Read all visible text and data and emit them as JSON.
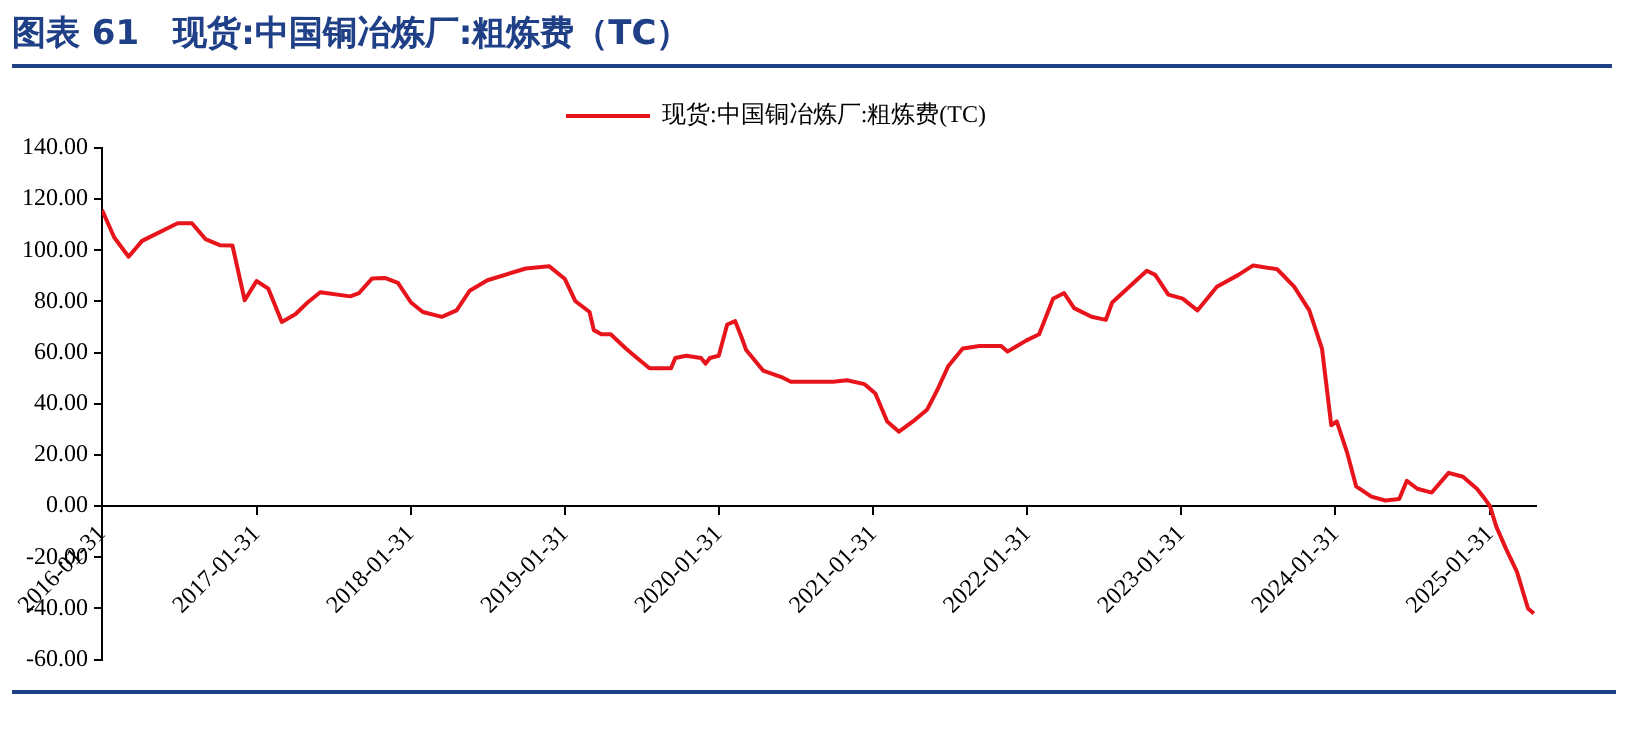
{
  "chart_data": {
    "type": "line",
    "title": "图表 61　现货:中国铜冶炼厂:粗炼费（TC）",
    "x": [
      "2016-01-31",
      "2016-02-29",
      "2016-04-03",
      "2016-05-05",
      "2016-07-28",
      "2016-08-31",
      "2016-10-02",
      "2016-11-05",
      "2016-12-05",
      "2017-01-03",
      "2017-01-31",
      "2017-02-28",
      "2017-04-01",
      "2017-05-03",
      "2017-06-01",
      "2017-07-01",
      "2017-09-10",
      "2017-10-01",
      "2017-11-01",
      "2017-12-01",
      "2018-01-01",
      "2018-02-01",
      "2018-03-01",
      "2018-04-15",
      "2018-05-20",
      "2018-06-20",
      "2018-08-01",
      "2018-10-31",
      "2018-12-25",
      "2019-01-31",
      "2019-02-25",
      "2019-03-31",
      "2019-04-10",
      "2019-04-28",
      "2019-05-20",
      "2019-06-25",
      "2019-07-15",
      "2019-08-20",
      "2019-10-10",
      "2019-10-20",
      "2019-11-15",
      "2019-12-20",
      "2019-12-31",
      "2020-01-10",
      "2020-01-31",
      "2020-02-20",
      "2020-03-10",
      "2020-03-25",
      "2020-04-05",
      "2020-05-15",
      "2020-07-01",
      "2020-07-20",
      "2020-10-28",
      "2020-11-30",
      "2021-01-10",
      "2021-02-05",
      "2021-03-05",
      "2021-04-02",
      "2021-05-05",
      "2021-06-08",
      "2021-07-02",
      "2021-07-28",
      "2021-08-31",
      "2021-10-10",
      "2021-11-30",
      "2021-12-15",
      "2022-01-28",
      "2022-02-28",
      "2022-04-02",
      "2022-04-28",
      "2022-05-22",
      "2022-07-02",
      "2022-08-05",
      "2022-08-20",
      "2022-10-10",
      "2022-11-10",
      "2022-11-30",
      "2022-12-31",
      "2023-02-03",
      "2023-03-10",
      "2023-04-25",
      "2023-06-15",
      "2023-07-20",
      "2023-09-15",
      "2023-10-25",
      "2023-11-30",
      "2023-12-30",
      "2024-01-21",
      "2024-02-03",
      "2024-02-28",
      "2024-03-20",
      "2024-04-25",
      "2024-05-28",
      "2024-06-30",
      "2024-07-18",
      "2024-08-12",
      "2024-09-15",
      "2024-10-25",
      "2024-11-28",
      "2024-12-31",
      "2025-01-15",
      "2025-01-31",
      "2025-02-15",
      "2025-03-10",
      "2025-04-05",
      "2025-05-01",
      "2025-05-15"
    ],
    "series": [
      {
        "name": "现货:中国铜冶炼厂:粗炼费(TC)",
        "color": "#e8141c",
        "values": [
          115.8,
          105,
          97.5,
          103.7,
          110.6,
          110.6,
          104.4,
          102,
          101.9,
          80.5,
          88,
          85,
          72,
          75,
          79.6,
          83.6,
          82,
          83.3,
          89,
          89.2,
          87.3,
          79.6,
          75.9,
          74,
          76.5,
          84.2,
          88.3,
          92.9,
          93.8,
          88.9,
          80.2,
          75.9,
          68.8,
          67.2,
          67.2,
          61.6,
          58.8,
          53.9,
          53.9,
          57.9,
          58.8,
          57.9,
          55.7,
          57.9,
          58.8,
          71,
          72.3,
          66,
          61,
          53,
          50.2,
          48.6,
          48.6,
          49.2,
          47.7,
          44,
          33.1,
          29.1,
          33.1,
          37.8,
          45.5,
          54.8,
          61.6,
          62.6,
          62.6,
          60.4,
          64.7,
          67.2,
          81.1,
          83.3,
          77.4,
          74,
          72.8,
          79.6,
          87.3,
          92,
          90.4,
          82.7,
          81.1,
          76.5,
          85.8,
          90.4,
          94.1,
          92.6,
          85.8,
          76.5,
          61.6,
          31.6,
          33.1,
          20.7,
          7.7,
          3.7,
          2.2,
          2.8,
          9.9,
          6.8,
          5.3,
          13,
          11.5,
          6.8,
          3.7,
          0,
          -8,
          -16.7,
          -25.7,
          -40,
          -42
        ]
      }
    ],
    "xlim": [
      "2016-01-31",
      "2025-05-20"
    ],
    "xticks": [
      "2016-01-31",
      "2017-01-31",
      "2018-01-31",
      "2019-01-31",
      "2020-01-31",
      "2021-01-31",
      "2022-01-31",
      "2023-01-31",
      "2024-01-31",
      "2025-01-31"
    ],
    "ylim": [
      -60,
      140
    ],
    "yticks": [
      {
        "value": -60,
        "label": "-60.00"
      },
      {
        "value": -40,
        "label": "-40.00"
      },
      {
        "value": -20,
        "label": "-20.00"
      },
      {
        "value": 0,
        "label": "0.00"
      },
      {
        "value": 20,
        "label": "20.00"
      },
      {
        "value": 40,
        "label": "40.00"
      },
      {
        "value": 60,
        "label": "60.00"
      },
      {
        "value": 80,
        "label": "80.00"
      },
      {
        "value": 100,
        "label": "100.00"
      },
      {
        "value": 120,
        "label": "120.00"
      },
      {
        "value": 140,
        "label": "140.00"
      }
    ],
    "grid": false,
    "legend": "top",
    "marker": "none",
    "line_style": "solid"
  }
}
